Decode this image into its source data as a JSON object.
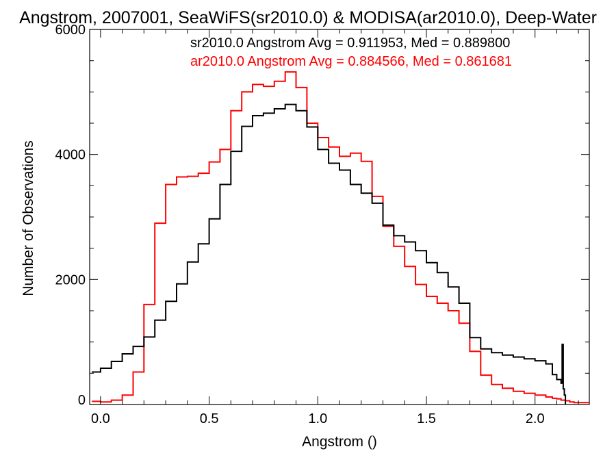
{
  "chart_data": {
    "type": "line",
    "step": true,
    "title": "Angstrom, 2007001, SeaWiFS(sr2010.0) & MODISA(ar2010.0), Deep-Water",
    "xlabel": "Angstrom ()",
    "ylabel": "Number of Observations",
    "xlim": [
      -0.05,
      2.25
    ],
    "ylim": [
      0,
      6000
    ],
    "x_ticks": [
      {
        "value": 0.0,
        "label": "0.0"
      },
      {
        "value": 0.5,
        "label": "0.5"
      },
      {
        "value": 1.0,
        "label": "1.0"
      },
      {
        "value": 1.5,
        "label": "1.5"
      },
      {
        "value": 2.0,
        "label": "2.0"
      }
    ],
    "y_ticks": [
      {
        "value": 0,
        "label": "0"
      },
      {
        "value": 2000,
        "label": "2000"
      },
      {
        "value": 4000,
        "label": "4000"
      },
      {
        "value": 6000,
        "label": "6000"
      }
    ],
    "annotations": [
      {
        "text": "sr2010.0 Angstrom Avg = 0.911953, Med = 0.889800",
        "color": "#000000"
      },
      {
        "text": "ar2010.0 Angstrom Avg = 0.884566, Med = 0.861681",
        "color": "#ff0000"
      }
    ],
    "series": [
      {
        "name": "sr2010.0",
        "color": "#000000",
        "x": [
          -0.04,
          0.0,
          0.05,
          0.1,
          0.15,
          0.2,
          0.25,
          0.3,
          0.35,
          0.4,
          0.45,
          0.5,
          0.55,
          0.6,
          0.65,
          0.7,
          0.75,
          0.8,
          0.85,
          0.9,
          0.95,
          1.0,
          1.05,
          1.1,
          1.15,
          1.2,
          1.25,
          1.3,
          1.35,
          1.4,
          1.45,
          1.5,
          1.55,
          1.6,
          1.65,
          1.7,
          1.75,
          1.8,
          1.85,
          1.9,
          1.95,
          2.0,
          2.05,
          2.08,
          2.1,
          2.12,
          2.125,
          2.13,
          2.135,
          2.14
        ],
        "y": [
          520,
          580,
          690,
          810,
          930,
          1080,
          1350,
          1650,
          1930,
          2280,
          2570,
          2970,
          3520,
          4050,
          4450,
          4620,
          4660,
          4730,
          4800,
          4700,
          4440,
          4080,
          3860,
          3750,
          3520,
          3380,
          3220,
          2870,
          2700,
          2600,
          2460,
          2270,
          2110,
          1880,
          1620,
          1070,
          890,
          830,
          790,
          760,
          730,
          700,
          650,
          480,
          400,
          340,
          960,
          250,
          150,
          0
        ]
      },
      {
        "name": "ar2010.0",
        "color": "#ff0000",
        "x": [
          -0.04,
          0.0,
          0.05,
          0.1,
          0.15,
          0.2,
          0.25,
          0.3,
          0.35,
          0.4,
          0.45,
          0.5,
          0.55,
          0.6,
          0.65,
          0.7,
          0.75,
          0.8,
          0.85,
          0.9,
          0.95,
          1.0,
          1.05,
          1.1,
          1.15,
          1.2,
          1.25,
          1.3,
          1.35,
          1.4,
          1.45,
          1.5,
          1.55,
          1.6,
          1.65,
          1.7,
          1.75,
          1.8,
          1.85,
          1.9,
          1.95,
          2.0,
          2.05,
          2.08,
          2.1,
          2.12,
          2.14,
          2.16,
          2.18,
          2.25
        ],
        "y": [
          50,
          40,
          70,
          150,
          520,
          1600,
          2900,
          3520,
          3640,
          3650,
          3700,
          3880,
          4080,
          4700,
          5000,
          5120,
          5090,
          5170,
          5320,
          5070,
          4500,
          4270,
          4120,
          3970,
          4020,
          3890,
          3330,
          2850,
          2530,
          2210,
          1920,
          1730,
          1620,
          1500,
          1300,
          850,
          470,
          320,
          260,
          210,
          180,
          150,
          120,
          100,
          90,
          70,
          60,
          40,
          30,
          20
        ]
      }
    ],
    "grid": false,
    "legend": "none"
  }
}
